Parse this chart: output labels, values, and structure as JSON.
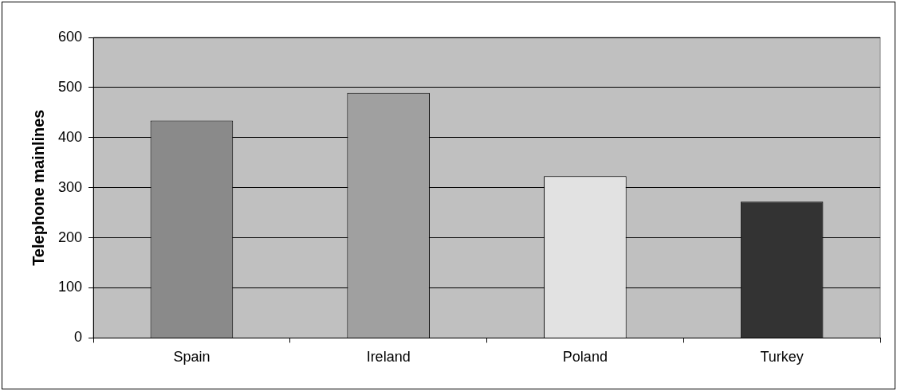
{
  "chart_data": {
    "type": "bar",
    "ylabel": "Telephone mainlines",
    "categories": [
      "Spain",
      "Ireland",
      "Poland",
      "Turkey"
    ],
    "values": [
      434,
      489,
      323,
      272
    ],
    "colors": [
      "#8a8a8a",
      "#a0a0a0",
      "#e2e2e2",
      "#333333"
    ],
    "ylim": [
      0,
      600
    ],
    "yticks": [
      0,
      100,
      200,
      300,
      400,
      500,
      600
    ],
    "grid": "y",
    "legend": false
  }
}
